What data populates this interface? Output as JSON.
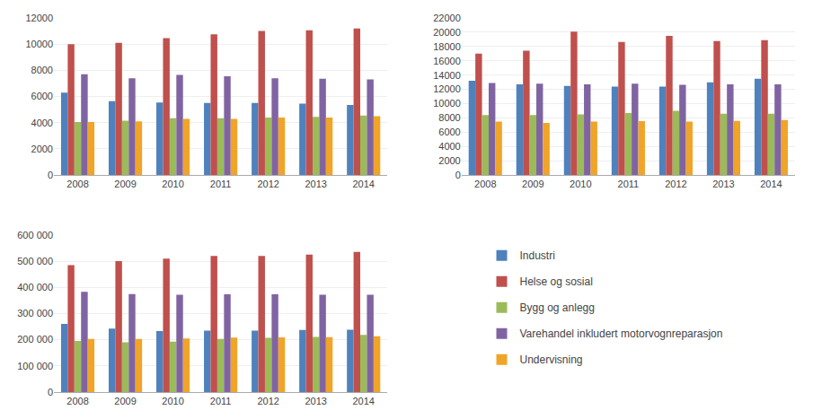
{
  "chart_data": [
    {
      "type": "bar",
      "categories": [
        "2008",
        "2009",
        "2010",
        "2011",
        "2012",
        "2013",
        "2014"
      ],
      "series": [
        {
          "name": "Industri",
          "color": "#4F81BD",
          "values": [
            6300,
            5650,
            5550,
            5500,
            5500,
            5450,
            5350
          ]
        },
        {
          "name": "Helse og sosial",
          "color": "#C0504D",
          "values": [
            10000,
            10100,
            10450,
            10750,
            11000,
            11050,
            11200
          ]
        },
        {
          "name": "Bygg og anlegg",
          "color": "#9BBB59",
          "values": [
            4050,
            4150,
            4350,
            4350,
            4400,
            4450,
            4550
          ]
        },
        {
          "name": "Varehandel inkludert motorvognreparasjon",
          "color": "#8064A2",
          "values": [
            7700,
            7400,
            7650,
            7550,
            7400,
            7350,
            7300
          ]
        },
        {
          "name": "Undervisning",
          "color": "#F0A428",
          "values": [
            4050,
            4100,
            4300,
            4300,
            4400,
            4400,
            4500
          ]
        }
      ],
      "ylim": [
        0,
        12000
      ],
      "yticks": [
        0,
        2000,
        4000,
        6000,
        8000,
        10000,
        12000
      ],
      "grid": true,
      "legend": "lower right"
    },
    {
      "type": "bar",
      "categories": [
        "2008",
        "2009",
        "2010",
        "2011",
        "2012",
        "2013",
        "2014"
      ],
      "series": [
        {
          "name": "Industri",
          "color": "#4F81BD",
          "values": [
            13200,
            12700,
            12500,
            12400,
            12400,
            13000,
            13500
          ]
        },
        {
          "name": "Helse og sosial",
          "color": "#C0504D",
          "values": [
            17000,
            17400,
            20100,
            18650,
            19500,
            18750,
            18900
          ]
        },
        {
          "name": "Bygg og anlegg",
          "color": "#9BBB59",
          "values": [
            8400,
            8400,
            8500,
            8700,
            9000,
            8600,
            8600
          ]
        },
        {
          "name": "Varehandel inkludert motorvognreparasjon",
          "color": "#8064A2",
          "values": [
            12900,
            12800,
            12700,
            12800,
            12650,
            12700,
            12700
          ]
        },
        {
          "name": "Undervisning",
          "color": "#F0A428",
          "values": [
            7500,
            7300,
            7500,
            7550,
            7500,
            7600,
            7700
          ]
        }
      ],
      "ylim": [
        0,
        22000
      ],
      "yticks": [
        0,
        2000,
        4000,
        6000,
        8000,
        10000,
        12000,
        14000,
        16000,
        18000,
        20000,
        22000
      ],
      "grid": true
    },
    {
      "type": "bar",
      "categories": [
        "2008",
        "2009",
        "2010",
        "2011",
        "2012",
        "2013",
        "2014"
      ],
      "series": [
        {
          "name": "Industri",
          "color": "#4F81BD",
          "values": [
            260000,
            242000,
            233000,
            235000,
            235000,
            237000,
            238000
          ]
        },
        {
          "name": "Helse og sosial",
          "color": "#C0504D",
          "values": [
            485000,
            500000,
            510000,
            520000,
            520000,
            525000,
            535000
          ]
        },
        {
          "name": "Bygg og anlegg",
          "color": "#9BBB59",
          "values": [
            195000,
            190000,
            193000,
            203000,
            207000,
            211000,
            218000
          ]
        },
        {
          "name": "Varehandel inkludert motorvognreparasjon",
          "color": "#8064A2",
          "values": [
            383000,
            374000,
            372000,
            373000,
            373000,
            372000,
            372000
          ]
        },
        {
          "name": "Undervisning",
          "color": "#F0A428",
          "values": [
            203000,
            203000,
            205000,
            208000,
            209000,
            210000,
            213000
          ]
        }
      ],
      "ylim": [
        0,
        600000
      ],
      "yticks": [
        0,
        {
          "value": 100000,
          "label": "100 000"
        },
        {
          "value": 200000,
          "label": "200 000"
        },
        {
          "value": 300000,
          "label": "300 000"
        },
        {
          "value": 400000,
          "label": "400 000"
        },
        {
          "value": 500000,
          "label": "500 000"
        },
        {
          "value": 600000,
          "label": "600 000"
        }
      ],
      "grid": true
    }
  ]
}
